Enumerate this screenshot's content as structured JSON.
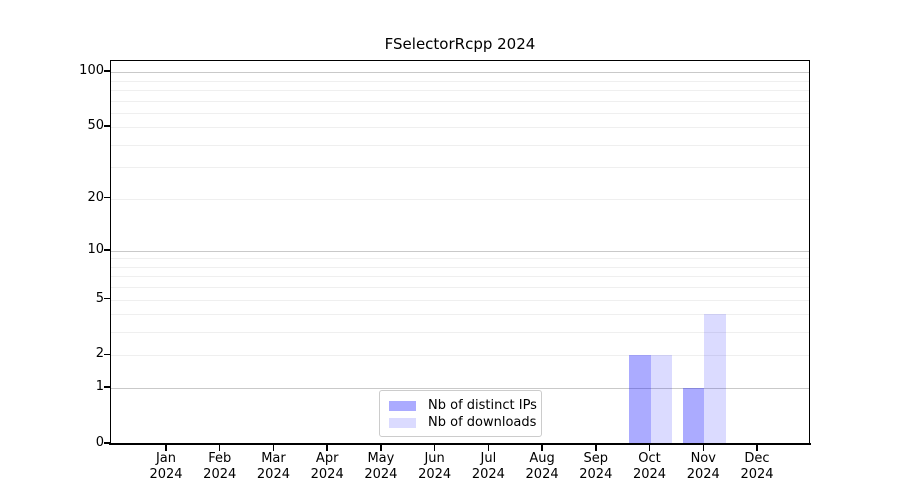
{
  "chart_data": {
    "type": "bar",
    "title": "FSelectorRcpp 2024",
    "x": {
      "categories": [
        "Jan",
        "Feb",
        "Mar",
        "Apr",
        "May",
        "Jun",
        "Jul",
        "Aug",
        "Sep",
        "Oct",
        "Nov",
        "Dec"
      ],
      "sublabel": "2024"
    },
    "series": [
      {
        "name": "Nb of distinct IPs",
        "color": "#0000ff54",
        "values": [
          0,
          0,
          0,
          0,
          0,
          0,
          0,
          0,
          0,
          2,
          1,
          0
        ]
      },
      {
        "name": "Nb of downloads",
        "color": "#0000ff24",
        "values": [
          0,
          0,
          0,
          0,
          0,
          0,
          0,
          0,
          0,
          2,
          4,
          0
        ]
      }
    ],
    "yscale": "log1p",
    "ylim": [
      0,
      115
    ],
    "yticks": [
      0,
      1,
      2,
      5,
      10,
      20,
      50,
      100
    ],
    "grid": {
      "major_values": [
        1,
        10,
        100
      ],
      "minor_values": [
        2,
        3,
        4,
        5,
        6,
        7,
        8,
        9,
        20,
        30,
        40,
        50,
        60,
        70,
        80,
        90
      ],
      "major_color": "#c9c9c9",
      "minor_color": "#efefef"
    },
    "legend_position": "lower center"
  }
}
